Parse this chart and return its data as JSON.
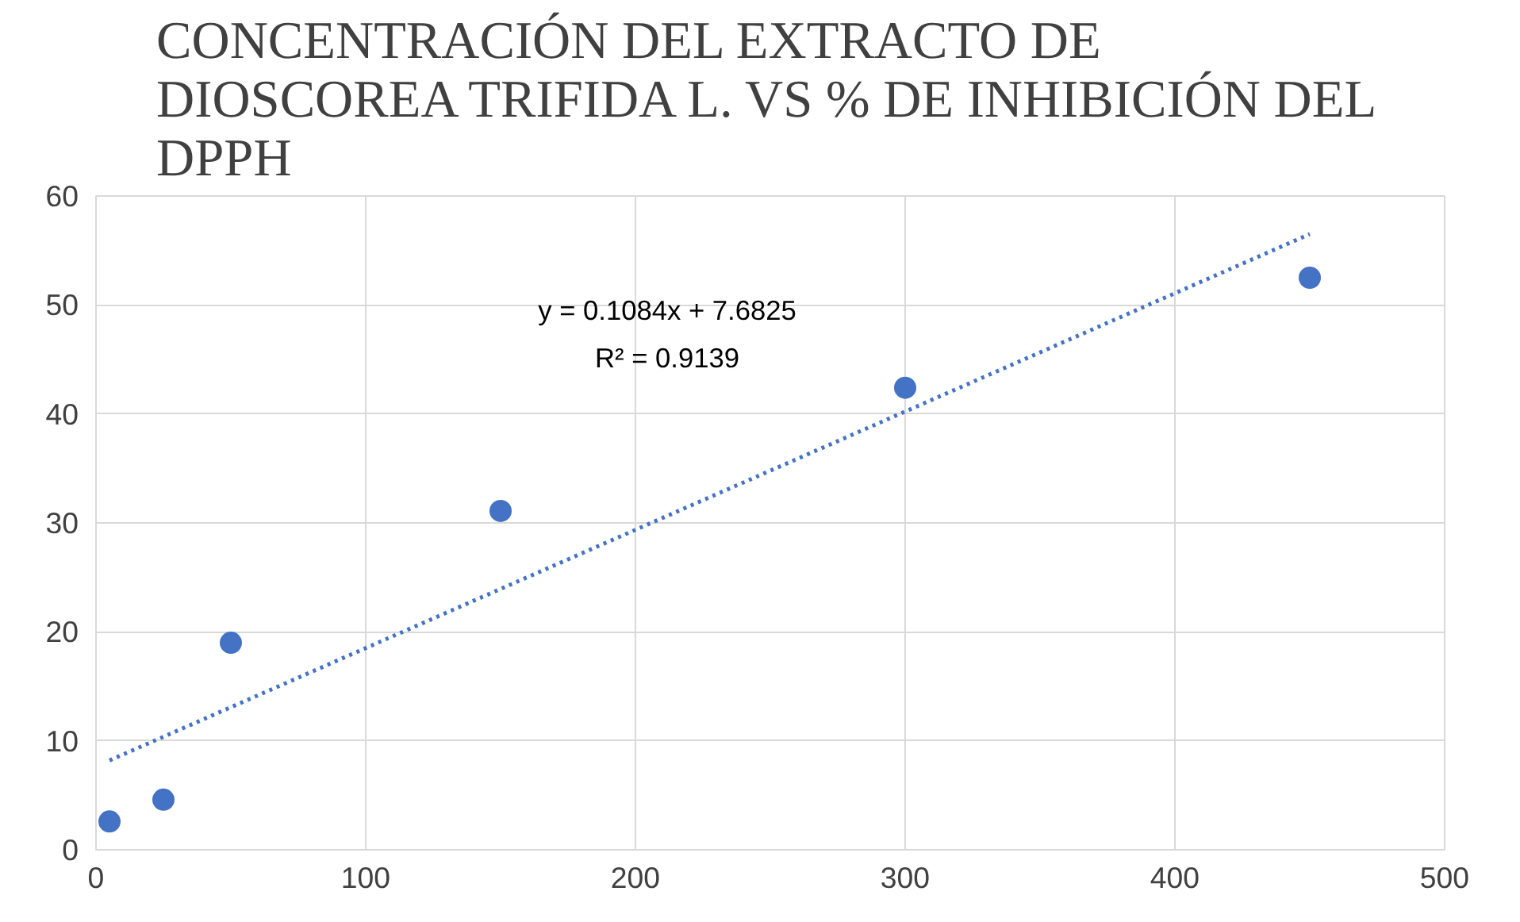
{
  "chart_data": {
    "type": "scatter",
    "title": "CONCENTRACIÓN DEL EXTRACTO DE\nDIOSCOREA TRIFIDA L. VS % DE INHIBICIÓN DEL\nDPPH",
    "series": [
      {
        "color": "#4472c4",
        "marker": "circle",
        "x": [
          5,
          25,
          50,
          150,
          300,
          450
        ],
        "values": [
          2.6,
          4.6,
          19.0,
          31.1,
          42.4,
          52.5
        ]
      },
      {
        "type": "line",
        "color": "#4472c4",
        "line_style": "dotted",
        "x": [
          5,
          450
        ],
        "values": [
          8.2,
          56.5
        ]
      }
    ],
    "annotations": [
      "y = 0.1084x + 7.6825",
      "R² = 0.9139"
    ],
    "xlim": [
      0,
      500
    ],
    "xticks": [
      0,
      100,
      200,
      300,
      400,
      500
    ],
    "ylim": [
      0,
      60
    ],
    "yticks": [
      0,
      10,
      20,
      30,
      40,
      50,
      60
    ],
    "grid": true
  }
}
